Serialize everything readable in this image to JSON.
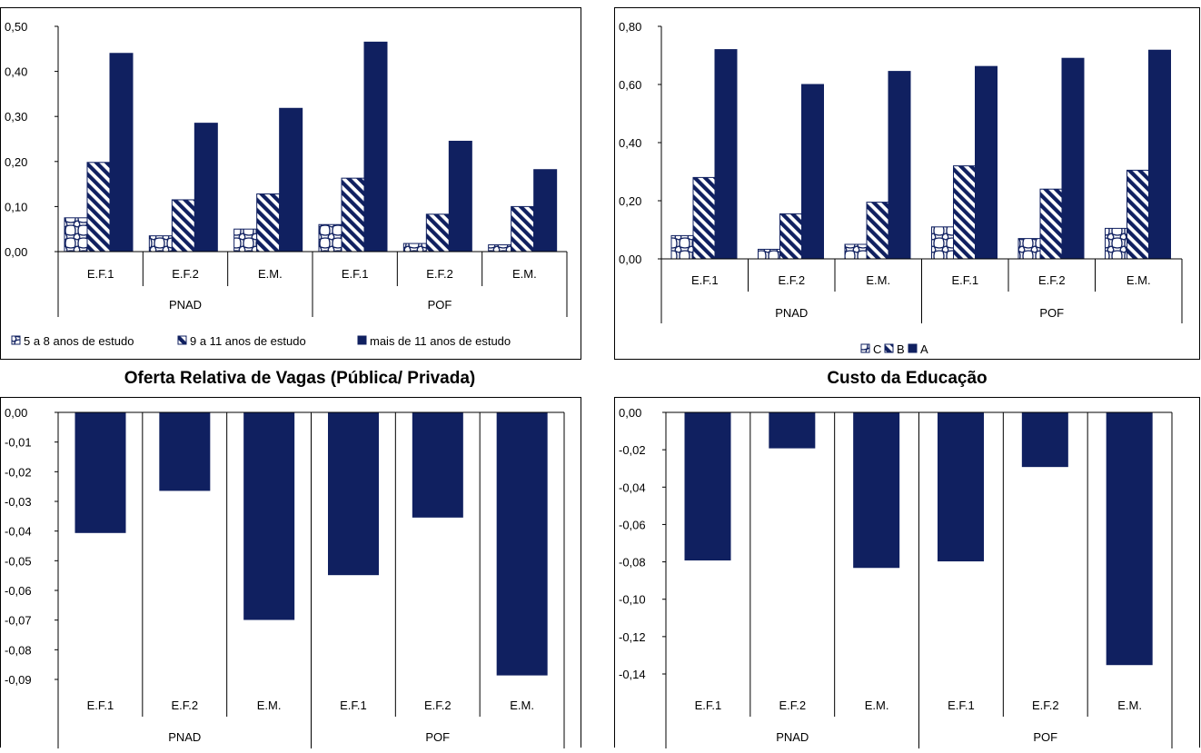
{
  "chart_data": [
    {
      "id": "chart1",
      "type": "bar",
      "title": "",
      "groups": [
        "PNAD",
        "POF"
      ],
      "categories": [
        "E.F.1",
        "E.F.2",
        "E.M.",
        "E.F.1",
        "E.F.2",
        "E.M."
      ],
      "series": [
        {
          "name": "5 a 8 anos de estudo",
          "pattern": "cross",
          "values": [
            0.075,
            0.035,
            0.05,
            0.06,
            0.018,
            0.015
          ]
        },
        {
          "name": "9 a 11 anos de estudo",
          "pattern": "diagonal",
          "values": [
            0.198,
            0.115,
            0.128,
            0.163,
            0.083,
            0.1
          ]
        },
        {
          "name": "mais de 11 anos de estudo",
          "pattern": "solid",
          "values": [
            0.44,
            0.285,
            0.318,
            0.465,
            0.245,
            0.182
          ]
        }
      ],
      "ylim": [
        0,
        0.5
      ],
      "yticks": [
        "0,50",
        "0,40",
        "0,30",
        "0,20",
        "0,10",
        "0,00"
      ],
      "grid": false,
      "legend": "bottom"
    },
    {
      "id": "chart2",
      "type": "bar",
      "title": "",
      "groups": [
        "PNAD",
        "POF"
      ],
      "categories": [
        "E.F.1",
        "E.F.2",
        "E.M.",
        "E.F.1",
        "E.F.2",
        "E.M."
      ],
      "series": [
        {
          "name": "C",
          "pattern": "cross",
          "values": [
            0.08,
            0.033,
            0.05,
            0.11,
            0.07,
            0.105
          ]
        },
        {
          "name": "B",
          "pattern": "diagonal",
          "values": [
            0.28,
            0.155,
            0.195,
            0.32,
            0.24,
            0.305
          ]
        },
        {
          "name": "A",
          "pattern": "solid",
          "values": [
            0.72,
            0.6,
            0.645,
            0.662,
            0.69,
            0.718
          ]
        }
      ],
      "ylim": [
        0,
        0.8
      ],
      "yticks": [
        "0,80",
        "0,60",
        "0,40",
        "0,20",
        "0,00"
      ],
      "grid": false,
      "legend": "bottom"
    },
    {
      "id": "chart3",
      "type": "bar",
      "title": "Oferta Relativa de Vagas (Pública/ Privada)",
      "groups": [
        "PNAD",
        "POF"
      ],
      "categories": [
        "E.F.1",
        "E.F.2",
        "E.M.",
        "E.F.1",
        "E.F.2",
        "E.M."
      ],
      "series": [
        {
          "name": "",
          "pattern": "solid",
          "values": [
            -0.0405,
            -0.0263,
            -0.0698,
            -0.0547,
            -0.0353,
            -0.0885
          ]
        }
      ],
      "ylim": [
        -0.09,
        0
      ],
      "yticks": [
        "0,00",
        "-0,01",
        "-0,02",
        "-0,03",
        "-0,04",
        "-0,05",
        "-0,06",
        "-0,07",
        "-0,08",
        "-0,09"
      ],
      "grid": false,
      "legend": "none"
    },
    {
      "id": "chart4",
      "type": "bar",
      "title": "Custo da Educação",
      "groups": [
        "PNAD",
        "POF"
      ],
      "categories": [
        "E.F.1",
        "E.F.2",
        "E.M.",
        "E.F.1",
        "E.F.2",
        "E.M."
      ],
      "series": [
        {
          "name": "",
          "pattern": "solid",
          "values": [
            -0.079,
            -0.019,
            -0.083,
            -0.0795,
            -0.029,
            -0.135
          ]
        }
      ],
      "ylim": [
        -0.14,
        0
      ],
      "yticks": [
        "0,00",
        "-0,02",
        "-0,04",
        "-0,06",
        "-0,08",
        "-0,10",
        "-0,12",
        "-0,14"
      ],
      "grid": false,
      "legend": "none"
    }
  ],
  "colors": {
    "bar_fill": "#102060",
    "pattern_stroke": "#102060"
  }
}
